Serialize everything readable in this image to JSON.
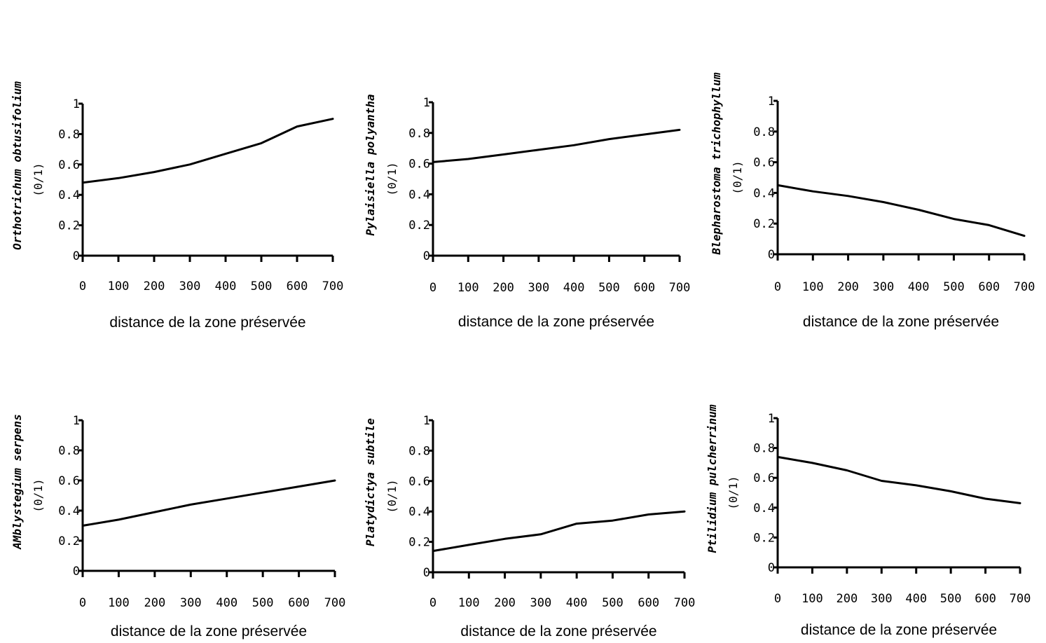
{
  "chart_data": [
    {
      "type": "line",
      "species_label": "Orthotrichum obtusifolium",
      "unit_label": "(0/1)",
      "xlabel": "distance de la zone préservée",
      "x_ticks": [
        "0",
        "100",
        "200",
        "300",
        "400",
        "500",
        "600",
        "700"
      ],
      "y_ticks": [
        "0",
        "0.2",
        "0.4",
        "0.6",
        "0.8",
        "1"
      ],
      "xlim": [
        0,
        700
      ],
      "ylim": [
        0,
        1
      ],
      "x": [
        0,
        100,
        200,
        300,
        400,
        500,
        600,
        700
      ],
      "y": [
        0.48,
        0.51,
        0.55,
        0.6,
        0.67,
        0.74,
        0.85,
        0.9
      ]
    },
    {
      "type": "line",
      "species_label": "Pylaisiella polyantha",
      "unit_label": "(0/1)",
      "xlabel": "distance de la zone préservée",
      "x_ticks": [
        "0",
        "100",
        "200",
        "300",
        "400",
        "500",
        "600",
        "700"
      ],
      "y_ticks": [
        "0",
        "0.2",
        "0.4",
        "0.6",
        "0.8",
        "1"
      ],
      "xlim": [
        0,
        700
      ],
      "ylim": [
        0,
        1
      ],
      "x": [
        0,
        100,
        200,
        300,
        400,
        500,
        600,
        700
      ],
      "y": [
        0.61,
        0.63,
        0.66,
        0.69,
        0.72,
        0.76,
        0.79,
        0.82
      ]
    },
    {
      "type": "line",
      "species_label": "Blepharostoma trichophyllum",
      "unit_label": "(0/1)",
      "xlabel": "distance de la zone préservée",
      "x_ticks": [
        "0",
        "100",
        "200",
        "300",
        "400",
        "500",
        "600",
        "700"
      ],
      "y_ticks": [
        "0",
        "0.2",
        "0.4",
        "0.6",
        "0.8",
        "1"
      ],
      "xlim": [
        0,
        700
      ],
      "ylim": [
        0,
        1
      ],
      "x": [
        0,
        100,
        200,
        300,
        400,
        500,
        600,
        700
      ],
      "y": [
        0.45,
        0.41,
        0.38,
        0.34,
        0.29,
        0.23,
        0.19,
        0.12
      ]
    },
    {
      "type": "line",
      "species_label": "AMblystegium serpens",
      "unit_label": "(0/1)",
      "xlabel": "distance de la zone préservée",
      "x_ticks": [
        "0",
        "100",
        "200",
        "300",
        "400",
        "500",
        "600",
        "700"
      ],
      "y_ticks": [
        "0",
        "0.2",
        "0.4",
        "0.6",
        "0.8",
        "1"
      ],
      "xlim": [
        0,
        700
      ],
      "ylim": [
        0,
        1
      ],
      "x": [
        0,
        100,
        200,
        300,
        400,
        500,
        600,
        700
      ],
      "y": [
        0.3,
        0.34,
        0.39,
        0.44,
        0.48,
        0.52,
        0.56,
        0.6
      ]
    },
    {
      "type": "line",
      "species_label": "Platydictya subtile",
      "unit_label": "(0/1)",
      "xlabel": "distance de la zone préservée",
      "x_ticks": [
        "0",
        "100",
        "200",
        "300",
        "400",
        "500",
        "600",
        "700"
      ],
      "y_ticks": [
        "0",
        "0.2",
        "0.4",
        "0.6",
        "0.8",
        "1"
      ],
      "xlim": [
        0,
        700
      ],
      "ylim": [
        0,
        1
      ],
      "x": [
        0,
        100,
        200,
        300,
        400,
        500,
        600,
        700
      ],
      "y": [
        0.14,
        0.18,
        0.22,
        0.25,
        0.32,
        0.34,
        0.38,
        0.4
      ]
    },
    {
      "type": "line",
      "species_label": "Ptilidium pulcherrinum",
      "unit_label": "(0/1)",
      "xlabel": "distance de la zone préservée",
      "x_ticks": [
        "0",
        "100",
        "200",
        "300",
        "400",
        "500",
        "600",
        "700"
      ],
      "y_ticks": [
        "0",
        "0.2",
        "0.4",
        "0.6",
        "0.8",
        "1"
      ],
      "xlim": [
        0,
        700
      ],
      "ylim": [
        0,
        1
      ],
      "x": [
        0,
        100,
        200,
        300,
        400,
        500,
        600,
        700
      ],
      "y": [
        0.74,
        0.7,
        0.65,
        0.58,
        0.55,
        0.51,
        0.46,
        0.43
      ]
    }
  ]
}
